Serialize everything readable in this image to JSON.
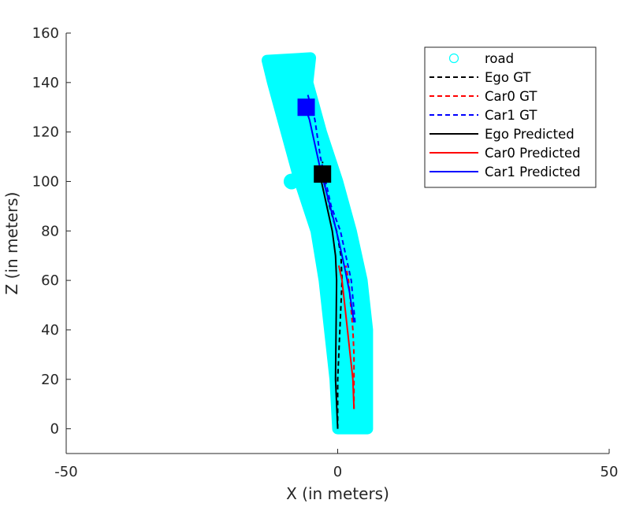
{
  "chart_data": {
    "type": "line",
    "xlabel": "X (in meters)",
    "ylabel": "Z (in meters)",
    "xlim": [
      -50,
      50
    ],
    "ylim": [
      -10,
      160
    ],
    "xticks": [
      -50,
      0,
      50
    ],
    "yticks": [
      0,
      20,
      40,
      60,
      80,
      100,
      120,
      140,
      160
    ],
    "xtick_labels": [
      "-50",
      "0",
      "50"
    ],
    "ytick_labels": [
      "0",
      "20",
      "40",
      "60",
      "80",
      "100",
      "120",
      "140",
      "160"
    ],
    "grid": false,
    "legend_position": "top-right",
    "road": {
      "name": "road",
      "color": "#00ffff",
      "marker": "circle",
      "left_edge": [
        [
          0,
          0
        ],
        [
          -0.5,
          20
        ],
        [
          -1.5,
          40
        ],
        [
          -2.5,
          60
        ],
        [
          -4,
          80
        ],
        [
          -7,
          100
        ],
        [
          -9.5,
          120
        ],
        [
          -12,
          140
        ],
        [
          -13,
          149
        ]
      ],
      "right_edge": [
        [
          5.5,
          0
        ],
        [
          5.5,
          20
        ],
        [
          5.5,
          40
        ],
        [
          4.5,
          60
        ],
        [
          2.5,
          80
        ],
        [
          0,
          100
        ],
        [
          -3,
          120
        ],
        [
          -5.5,
          140
        ],
        [
          -5,
          150
        ]
      ],
      "bump": [
        -8.5,
        100
      ]
    },
    "series": [
      {
        "name": "Ego GT",
        "color": "#000000",
        "style": "dashed",
        "points": [
          [
            0,
            0
          ],
          [
            0,
            10
          ],
          [
            0,
            20
          ],
          [
            0.2,
            30
          ],
          [
            0.4,
            40
          ],
          [
            0.6,
            50
          ],
          [
            0.8,
            60
          ],
          [
            0.6,
            70
          ],
          [
            -0.2,
            80
          ],
          [
            -1.5,
            90
          ],
          [
            -2.5,
            100
          ],
          [
            -2.8,
            108
          ]
        ]
      },
      {
        "name": "Car0 GT",
        "color": "#ff0000",
        "style": "dashed",
        "points": [
          [
            3,
            8
          ],
          [
            3,
            20
          ],
          [
            3,
            30
          ],
          [
            2.8,
            40
          ],
          [
            2.4,
            50
          ],
          [
            2,
            60
          ],
          [
            1.5,
            66
          ]
        ]
      },
      {
        "name": "Car1 GT",
        "color": "#0000ff",
        "style": "dashed",
        "points": [
          [
            3.2,
            43
          ],
          [
            2.5,
            60
          ],
          [
            1.5,
            70
          ],
          [
            0.5,
            80
          ],
          [
            -1.2,
            90
          ],
          [
            -2.2,
            100
          ],
          [
            -3.2,
            110
          ],
          [
            -4.2,
            125
          ],
          [
            -5.5,
            135
          ]
        ]
      },
      {
        "name": "Ego Predicted",
        "color": "#000000",
        "style": "solid",
        "points": [
          [
            0,
            0
          ],
          [
            -0.2,
            10
          ],
          [
            -0.4,
            20
          ],
          [
            -0.3,
            40
          ],
          [
            -0.2,
            60
          ],
          [
            -0.4,
            70
          ],
          [
            -1,
            80
          ],
          [
            -2,
            90
          ],
          [
            -3,
            100
          ],
          [
            -3.3,
            103
          ]
        ]
      },
      {
        "name": "Car0 Predicted",
        "color": "#ff0000",
        "style": "solid",
        "points": [
          [
            3,
            8
          ],
          [
            2.8,
            20
          ],
          [
            2.3,
            30
          ],
          [
            1.8,
            40
          ],
          [
            1.3,
            50
          ],
          [
            0.8,
            60
          ],
          [
            0.2,
            66
          ]
        ]
      },
      {
        "name": "Car1 Predicted",
        "color": "#0000ff",
        "style": "solid",
        "points": [
          [
            3,
            43
          ],
          [
            2.2,
            55
          ],
          [
            1.3,
            65
          ],
          [
            0.3,
            75
          ],
          [
            -0.8,
            85
          ],
          [
            -2,
            95
          ],
          [
            -3.2,
            105
          ],
          [
            -4.2,
            115
          ],
          [
            -5.2,
            125
          ],
          [
            -6,
            130
          ]
        ]
      }
    ],
    "markers": [
      {
        "name": "Ego",
        "color": "#000000",
        "shape": "square",
        "x": -2.8,
        "y": 103
      },
      {
        "name": "Car1",
        "color": "#0000ff",
        "shape": "square",
        "x": -5.8,
        "y": 130
      }
    ]
  }
}
